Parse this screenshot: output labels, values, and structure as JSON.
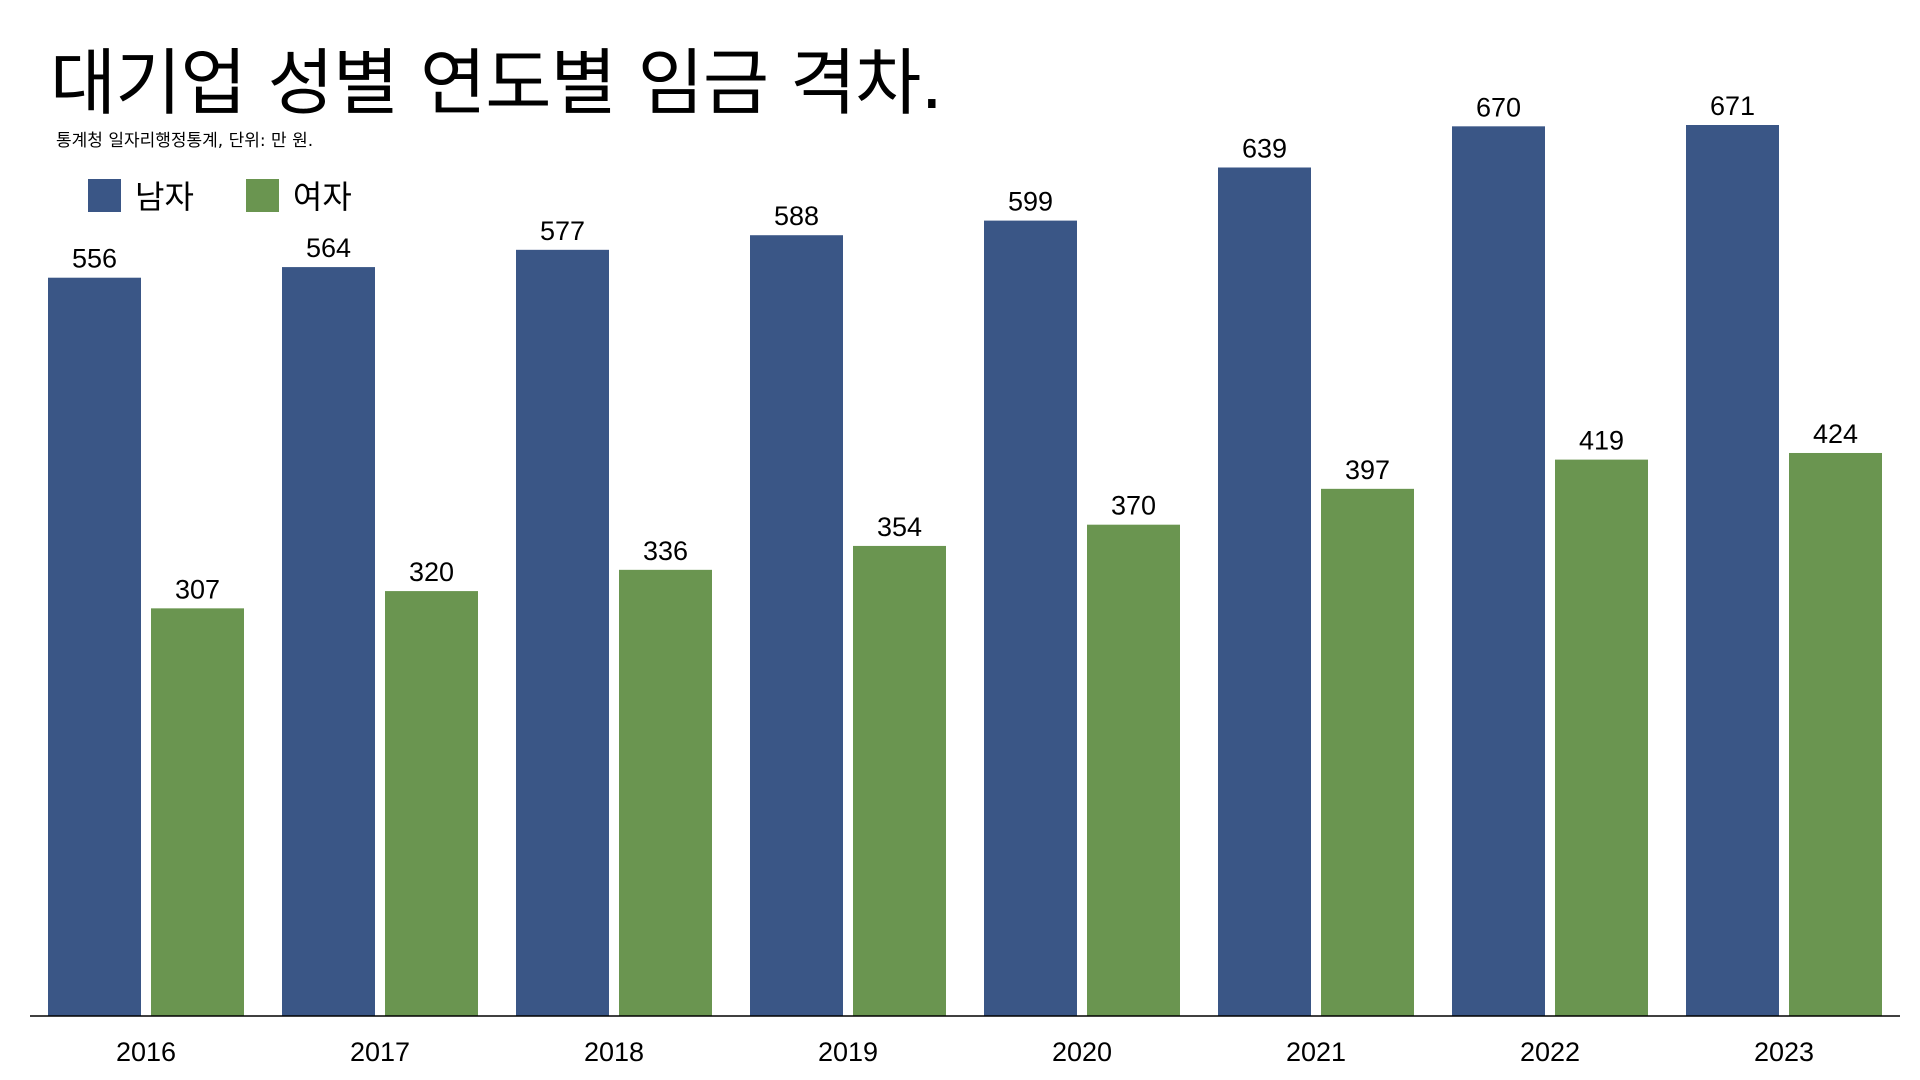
{
  "title": "대기업 성별 연도별 임금 격차.",
  "subtitle": "통계청 일자리행정통계, 단위: 만 원.",
  "colors": {
    "male": "#3A5686",
    "female": "#6A9550",
    "axis": "#000000"
  },
  "chart_data": {
    "type": "bar",
    "title": "대기업 성별 연도별 임금 격차.",
    "subtitle": "통계청 일자리행정통계, 단위: 만 원.",
    "categories": [
      "2016",
      "2017",
      "2018",
      "2019",
      "2020",
      "2021",
      "2022",
      "2023"
    ],
    "series": [
      {
        "name": "남자",
        "values": [
          556,
          564,
          577,
          588,
          599,
          639,
          670,
          671
        ]
      },
      {
        "name": "여자",
        "values": [
          307,
          320,
          336,
          354,
          370,
          397,
          419,
          424
        ]
      }
    ],
    "xlabel": "",
    "ylabel": "",
    "ylim": [
      0,
      671
    ],
    "grid": false,
    "legend": "top-left",
    "data_labels": true
  }
}
